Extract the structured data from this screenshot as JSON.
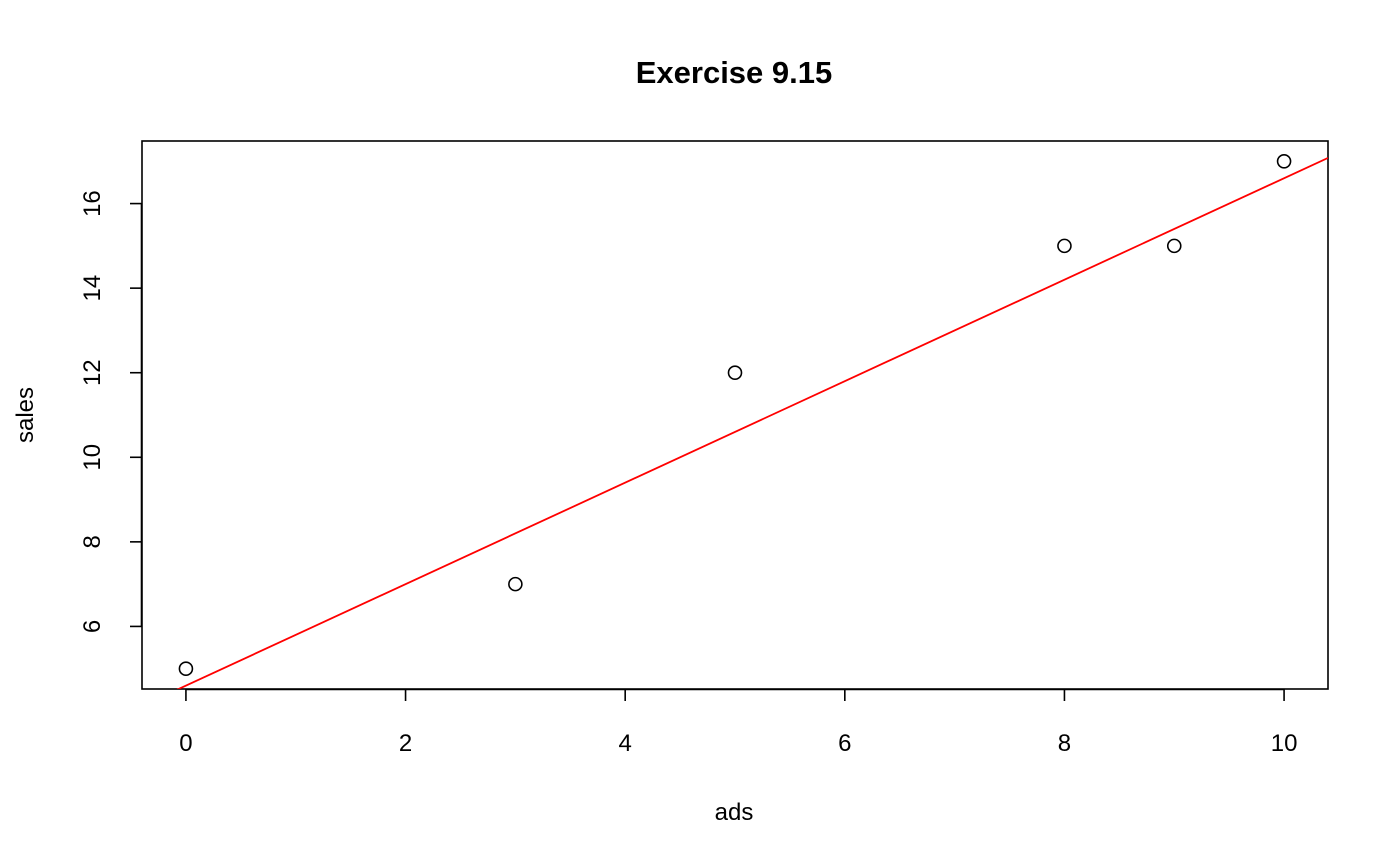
{
  "chart_data": {
    "type": "scatter",
    "title": "Exercise 9.15",
    "xlabel": "ads",
    "ylabel": "sales",
    "xlim": [
      -0.4,
      10.4
    ],
    "ylim": [
      4.52,
      17.48
    ],
    "x_ticks": [
      0,
      2,
      4,
      6,
      8,
      10
    ],
    "y_ticks": [
      6,
      8,
      10,
      12,
      14,
      16
    ],
    "x_tick_labels": [
      "0",
      "2",
      "4",
      "6",
      "8",
      "10"
    ],
    "y_tick_labels": [
      "6",
      "8",
      "10",
      "12",
      "14",
      "16"
    ],
    "grid": false,
    "legend": "none",
    "series": [
      {
        "marker": "open-circle",
        "color": "#000000",
        "points": [
          {
            "x": 0,
            "y": 5
          },
          {
            "x": 3,
            "y": 7
          },
          {
            "x": 5,
            "y": 12
          },
          {
            "x": 8,
            "y": 15
          },
          {
            "x": 9,
            "y": 15
          },
          {
            "x": 10,
            "y": 17
          }
        ]
      }
    ],
    "fit_line": {
      "type": "regression",
      "color": "#ff0000",
      "intercept": 4.6,
      "slope": 1.2
    }
  }
}
